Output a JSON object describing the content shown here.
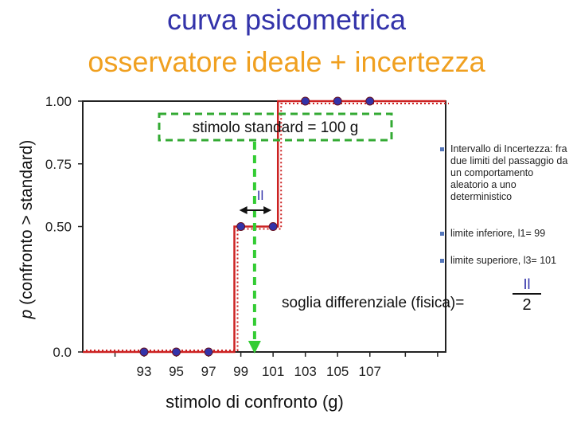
{
  "title_line1": "curva psicometrica",
  "title_line2": "osservatore ideale + incertezza",
  "colors": {
    "title1": "#3333aa",
    "title2": "#f0a020",
    "curve": "#cc2222",
    "points": "#3333aa",
    "standard_box": "#33aa33",
    "standard_line": "#33cc33"
  },
  "chart_data": {
    "type": "scatter",
    "xlabel": "stimolo di confronto (g)",
    "ylabel_italic": "p",
    "ylabel_rest": " (confronto > standard)",
    "x_ticks": [
      93,
      95,
      97,
      99,
      101,
      103,
      105,
      107
    ],
    "y_ticks": [
      "0.0",
      "0.50",
      "0.75",
      "1.00"
    ],
    "y_tick_values": [
      0,
      0.5,
      0.75,
      1.0
    ],
    "xlim": [
      89.2,
      111.7
    ],
    "ylim": [
      0,
      1.0
    ],
    "series": [
      {
        "x": [
          93,
          95,
          97,
          99,
          101,
          103,
          105,
          107
        ],
        "y": [
          0,
          0,
          0,
          0.5,
          0.5,
          1.0,
          1.0,
          1.0
        ]
      }
    ],
    "step_curve": [
      [
        89.2,
        0
      ],
      [
        98.6,
        0
      ],
      [
        98.6,
        0.5
      ],
      [
        101.3,
        0.5
      ],
      [
        101.3,
        1.0
      ],
      [
        111.7,
        1.0
      ]
    ],
    "standard_value": 100,
    "standard_label": "stimolo standard = 100 g",
    "interval_marker": "Il",
    "interval_range": [
      99,
      101
    ]
  },
  "bullets": {
    "b1": "Intervallo di Incertezza: fra due limiti del passaggio da un comportamento aleatorio a uno deterministico",
    "b2": "limite inferiore, l1= 99",
    "b3": "limite superiore, l3= 101"
  },
  "threshold": {
    "label": "soglia differenziale (fisica)=",
    "numerator": "Il",
    "denominator": "2"
  }
}
